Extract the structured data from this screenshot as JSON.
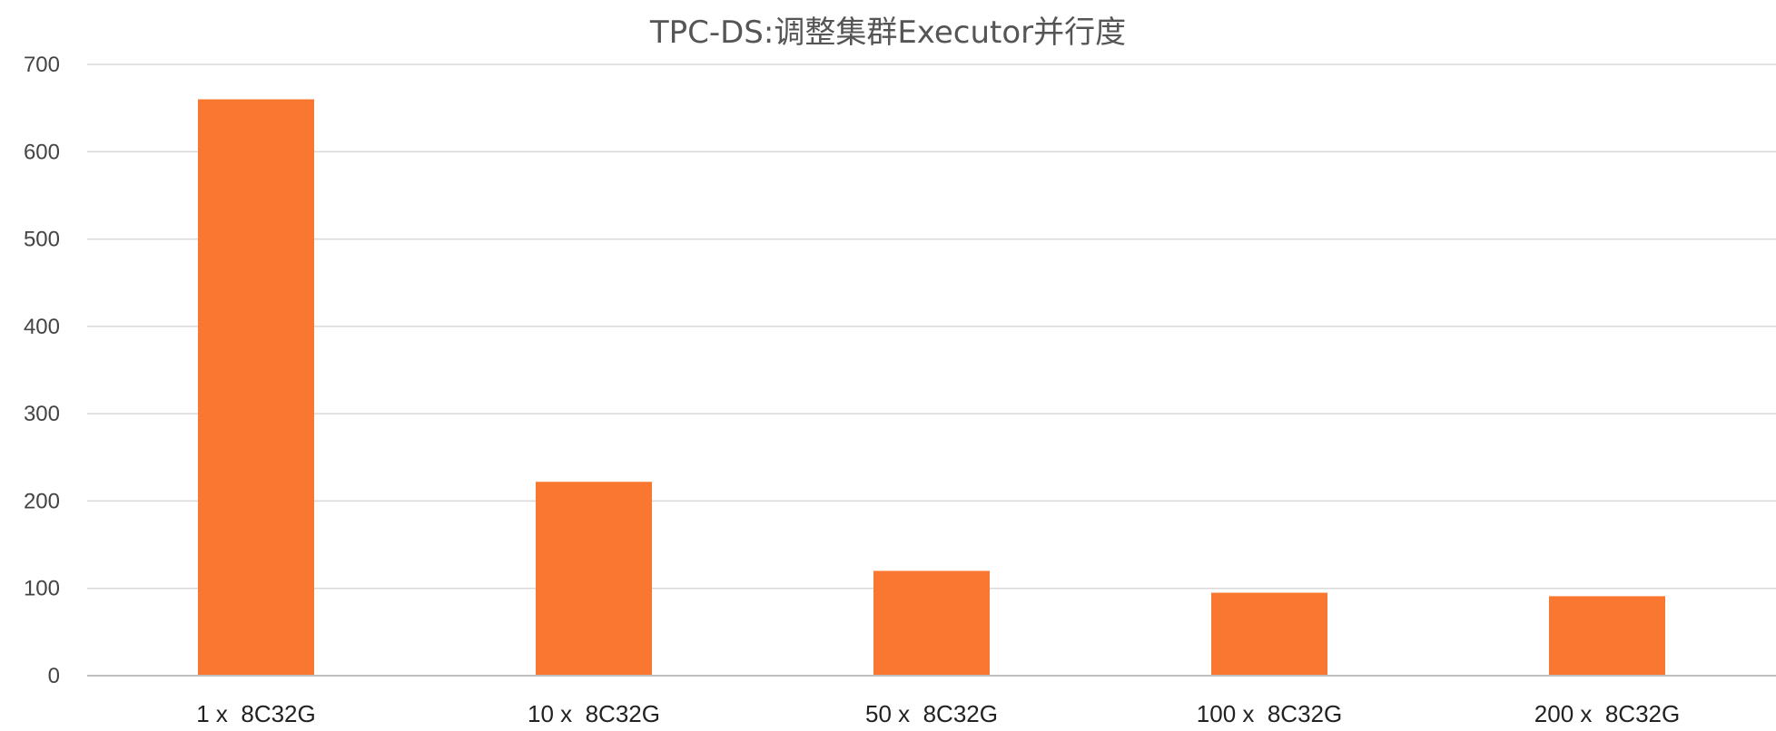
{
  "chart_data": {
    "type": "bar",
    "title": "TPC-DS:调整集群Executor并行度",
    "xlabel": "",
    "ylabel": "",
    "categories": [
      "1 x  8C32G",
      "10 x  8C32G",
      "50 x  8C32G",
      "100 x  8C32G",
      "200 x  8C32G"
    ],
    "series": [
      {
        "values": [
          660,
          222,
          120,
          95,
          91
        ],
        "color": "#f97730"
      }
    ],
    "ylim": [
      0,
      700
    ],
    "yticks": [
      0,
      100,
      200,
      300,
      400,
      500,
      600,
      700
    ],
    "grid": true,
    "legend": "none"
  }
}
